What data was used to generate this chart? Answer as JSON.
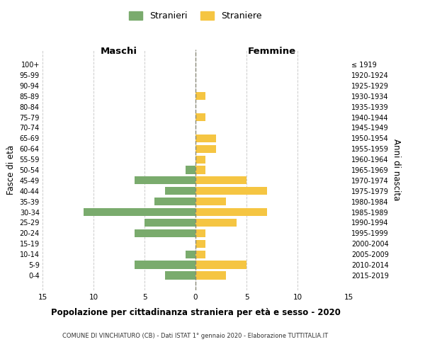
{
  "age_groups": [
    "100+",
    "95-99",
    "90-94",
    "85-89",
    "80-84",
    "75-79",
    "70-74",
    "65-69",
    "60-64",
    "55-59",
    "50-54",
    "45-49",
    "40-44",
    "35-39",
    "30-34",
    "25-29",
    "20-24",
    "15-19",
    "10-14",
    "5-9",
    "0-4"
  ],
  "birth_years": [
    "≤ 1919",
    "1920-1924",
    "1925-1929",
    "1930-1934",
    "1935-1939",
    "1940-1944",
    "1945-1949",
    "1950-1954",
    "1955-1959",
    "1960-1964",
    "1965-1969",
    "1970-1974",
    "1975-1979",
    "1980-1984",
    "1985-1989",
    "1990-1994",
    "1995-1999",
    "2000-2004",
    "2005-2009",
    "2010-2014",
    "2015-2019"
  ],
  "males": [
    0,
    0,
    0,
    0,
    0,
    0,
    0,
    0,
    0,
    0,
    1,
    6,
    3,
    4,
    11,
    5,
    6,
    0,
    1,
    6,
    3
  ],
  "females": [
    0,
    0,
    0,
    1,
    0,
    1,
    0,
    2,
    2,
    1,
    1,
    5,
    7,
    3,
    7,
    4,
    1,
    1,
    1,
    5,
    3
  ],
  "male_color": "#7aab6d",
  "female_color": "#f5c542",
  "xlabel_left": "Maschi",
  "xlabel_right": "Femmine",
  "ylabel_left": "Fasce di età",
  "ylabel_right": "Anni di nascita",
  "legend_male": "Stranieri",
  "legend_female": "Straniere",
  "title": "Popolazione per cittadinanza straniera per età e sesso - 2020",
  "subtitle": "COMUNE DI VINCHIATURO (CB) - Dati ISTAT 1° gennaio 2020 - Elaborazione TUTTITALIA.IT",
  "xlim": 15,
  "grid_color": "#cccccc",
  "bg_color": "#ffffff",
  "center_line_color": "#888877"
}
